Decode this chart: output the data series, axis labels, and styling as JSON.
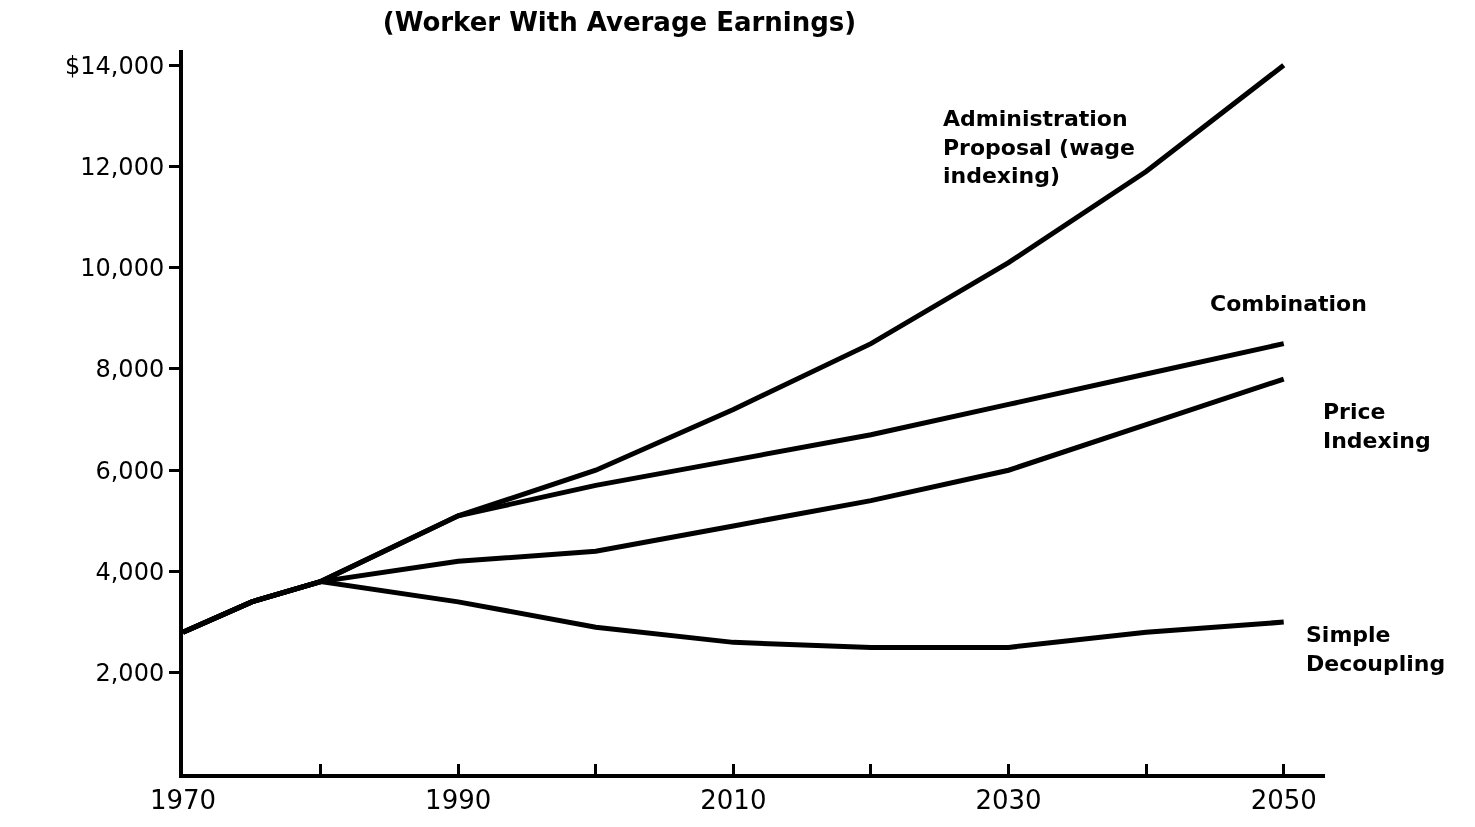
{
  "chart_data": {
    "type": "line",
    "title": "(Worker With Average Earnings)",
    "x": [
      1970,
      1975,
      1980,
      1990,
      2000,
      2010,
      2020,
      2030,
      2040,
      2050
    ],
    "series": [
      {
        "name": "Administration Proposal (wage indexing)",
        "color": "#000000",
        "values": [
          2800,
          3400,
          3800,
          5100,
          6000,
          7200,
          8500,
          10100,
          11900,
          14000
        ]
      },
      {
        "name": "Combination",
        "color": "#000000",
        "values": [
          2800,
          3400,
          3800,
          5100,
          5700,
          6200,
          6700,
          7300,
          7900,
          8500
        ]
      },
      {
        "name": "Price Indexing",
        "color": "#000000",
        "values": [
          2800,
          3400,
          3800,
          4200,
          4400,
          4900,
          5400,
          6000,
          6900,
          7800
        ]
      },
      {
        "name": "Simple Decoupling",
        "color": "#000000",
        "values": [
          2800,
          3400,
          3800,
          3400,
          2900,
          2600,
          2500,
          2500,
          2800,
          3000
        ]
      }
    ],
    "xlim": [
      1970,
      2053
    ],
    "ylim": [
      0,
      14300
    ],
    "xticks": [
      1970,
      {
        "value": 1980,
        "label": null
      },
      1990,
      {
        "value": 2000,
        "label": null
      },
      2010,
      {
        "value": 2020,
        "label": null
      },
      2030,
      {
        "value": 2040,
        "label": null
      },
      2050
    ],
    "yticks": [
      {
        "value": 2000,
        "label": "2,000"
      },
      {
        "value": 4000,
        "label": "4,000"
      },
      {
        "value": 6000,
        "label": "6,000"
      },
      {
        "value": 8000,
        "label": "8,000"
      },
      {
        "value": 10000,
        "label": "10,000"
      },
      {
        "value": 12000,
        "label": "12,000"
      },
      {
        "value": 14000,
        "label": "$14,000"
      }
    ],
    "legend": false,
    "marker": "none",
    "line_style": "solid"
  }
}
